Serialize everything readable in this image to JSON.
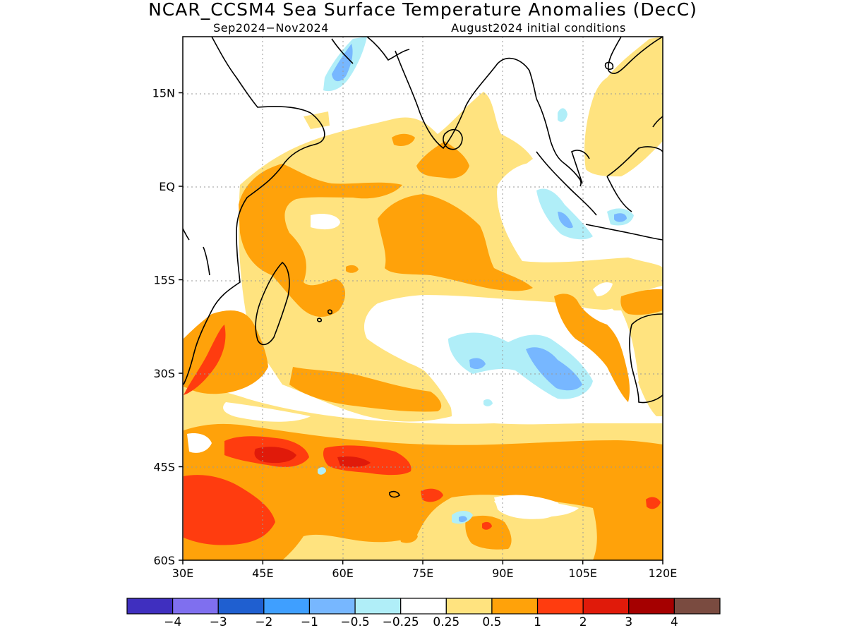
{
  "title": "NCAR_CCSM4 Sea Surface Temperature Anomalies (DecC)",
  "subtitle_left": "Sep2024−Nov2024",
  "subtitle_right": "August2024 initial conditions",
  "lat_ticks": [
    {
      "label": "15N",
      "lat": 15
    },
    {
      "label": "EQ",
      "lat": 0
    },
    {
      "label": "15S",
      "lat": -15
    },
    {
      "label": "30S",
      "lat": -30
    },
    {
      "label": "45S",
      "lat": -45
    },
    {
      "label": "60S",
      "lat": -60
    }
  ],
  "lon_ticks": [
    {
      "label": "30E",
      "lon": 30
    },
    {
      "label": "45E",
      "lon": 45
    },
    {
      "label": "60E",
      "lon": 60
    },
    {
      "label": "75E",
      "lon": 75
    },
    {
      "label": "90E",
      "lon": 90
    },
    {
      "label": "105E",
      "lon": 105
    },
    {
      "label": "120E",
      "lon": 120
    }
  ],
  "map_extent": {
    "lon": [
      30,
      120
    ],
    "lat": [
      -60,
      24
    ]
  },
  "colorbar": {
    "colors": [
      "#3f2fbf",
      "#7f6fef",
      "#1f5fd0",
      "#3f9fff",
      "#77b7ff",
      "#b0eef8",
      "#ffffff",
      "#ffe37f",
      "#ffa20a",
      "#ff3c0f",
      "#e01a0a",
      "#a50000",
      "#7a4b40"
    ],
    "labels": [
      "−4",
      "−3",
      "−2",
      "−1",
      "−0.5",
      "−0.25",
      "0.25",
      "0.5",
      "1",
      "2",
      "3",
      "4"
    ]
  },
  "chart_data": {
    "type": "heatmap",
    "title": "NCAR_CCSM4 Sea Surface Temperature Anomalies (DecC)",
    "period": "Sep2024−Nov2024",
    "initial_conditions": "August2024 initial conditions",
    "x_range_lon": [
      30,
      120
    ],
    "y_range_lat": [
      -60,
      24
    ],
    "grid": true,
    "legend_placement": "bottom",
    "levels": [
      -4,
      -3,
      -2,
      -1,
      -0.5,
      -0.25,
      0.25,
      0.5,
      1,
      2,
      3,
      4
    ]
  }
}
